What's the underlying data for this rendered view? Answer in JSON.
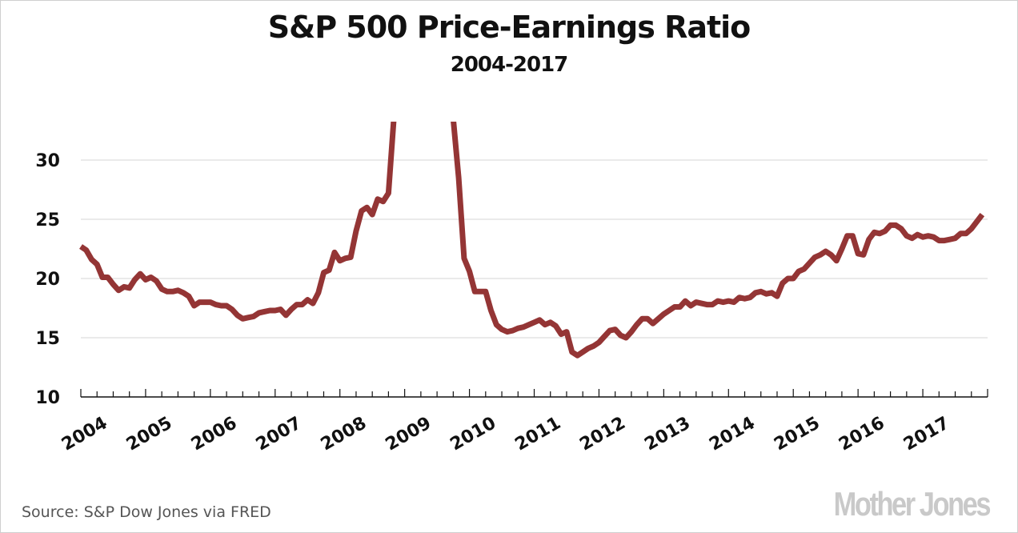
{
  "chart_data": {
    "type": "line",
    "title": "S&P 500 Price-Earnings Ratio",
    "subtitle": "2004-2017",
    "xlabel": "",
    "ylabel": "",
    "ylim": [
      10,
      33.5
    ],
    "yticks": [
      10,
      15,
      20,
      25,
      30
    ],
    "xticks": [
      "2004",
      "2005",
      "2006",
      "2007",
      "2008",
      "2009",
      "2010",
      "2011",
      "2012",
      "2013",
      "2014",
      "2015",
      "2016",
      "2017"
    ],
    "x_range": [
      2004.0,
      2018.0
    ],
    "grid": true,
    "legend": "none",
    "line_color": "#943535",
    "note": "Series exceeds the top of the axis from late 2008 through 2009 (clipped off-chart)",
    "series": [
      {
        "name": "S&P 500 P/E ratio",
        "x": [
          2004.0,
          2004.083,
          2004.167,
          2004.25,
          2004.333,
          2004.417,
          2004.5,
          2004.583,
          2004.667,
          2004.75,
          2004.833,
          2004.917,
          2005.0,
          2005.083,
          2005.167,
          2005.25,
          2005.333,
          2005.417,
          2005.5,
          2005.583,
          2005.667,
          2005.75,
          2005.833,
          2005.917,
          2006.0,
          2006.083,
          2006.167,
          2006.25,
          2006.333,
          2006.417,
          2006.5,
          2006.583,
          2006.667,
          2006.75,
          2006.833,
          2006.917,
          2007.0,
          2007.083,
          2007.167,
          2007.25,
          2007.333,
          2007.417,
          2007.5,
          2007.583,
          2007.667,
          2007.75,
          2007.833,
          2007.917,
          2008.0,
          2008.083,
          2008.167,
          2008.25,
          2008.333,
          2008.417,
          2008.5,
          2008.583,
          2008.667,
          2008.75,
          2008.833,
          2008.917,
          2009.75,
          2009.833,
          2009.917,
          2010.0,
          2010.083,
          2010.167,
          2010.25,
          2010.333,
          2010.417,
          2010.5,
          2010.583,
          2010.667,
          2010.75,
          2010.833,
          2010.917,
          2011.0,
          2011.083,
          2011.167,
          2011.25,
          2011.333,
          2011.417,
          2011.5,
          2011.583,
          2011.667,
          2011.75,
          2011.833,
          2011.917,
          2012.0,
          2012.083,
          2012.167,
          2012.25,
          2012.333,
          2012.417,
          2012.5,
          2012.583,
          2012.667,
          2012.75,
          2012.833,
          2012.917,
          2013.0,
          2013.083,
          2013.167,
          2013.25,
          2013.333,
          2013.417,
          2013.5,
          2013.583,
          2013.667,
          2013.75,
          2013.833,
          2013.917,
          2014.0,
          2014.083,
          2014.167,
          2014.25,
          2014.333,
          2014.417,
          2014.5,
          2014.583,
          2014.667,
          2014.75,
          2014.833,
          2014.917,
          2015.0,
          2015.083,
          2015.167,
          2015.25,
          2015.333,
          2015.417,
          2015.5,
          2015.583,
          2015.667,
          2015.75,
          2015.833,
          2015.917,
          2016.0,
          2016.083,
          2016.167,
          2016.25,
          2016.333,
          2016.417,
          2016.5,
          2016.583,
          2016.667,
          2016.75,
          2016.833,
          2016.917,
          2017.0,
          2017.083,
          2017.167,
          2017.25,
          2017.333,
          2017.417,
          2017.5,
          2017.583,
          2017.667,
          2017.75,
          2017.833,
          2017.917
        ],
        "values": [
          22.7,
          22.4,
          21.6,
          21.2,
          20.1,
          20.1,
          19.5,
          19.0,
          19.3,
          19.2,
          19.9,
          20.4,
          19.9,
          20.1,
          19.8,
          19.1,
          18.9,
          18.9,
          19.0,
          18.8,
          18.5,
          17.7,
          18.0,
          18.0,
          18.0,
          17.8,
          17.7,
          17.7,
          17.4,
          16.9,
          16.6,
          16.7,
          16.8,
          17.1,
          17.2,
          17.3,
          17.3,
          17.4,
          16.9,
          17.4,
          17.8,
          17.8,
          18.2,
          17.9,
          18.8,
          20.5,
          20.7,
          22.2,
          21.5,
          21.7,
          21.8,
          24.0,
          25.7,
          26.0,
          25.4,
          26.7,
          26.5,
          27.2,
          33.5,
          33.5,
          33.5,
          28.5,
          21.7,
          20.6,
          18.9,
          18.9,
          18.9,
          17.3,
          16.1,
          15.7,
          15.5,
          15.6,
          15.8,
          15.9,
          16.1,
          16.3,
          16.5,
          16.1,
          16.3,
          16.0,
          15.3,
          15.5,
          13.8,
          13.5,
          13.8,
          14.1,
          14.3,
          14.6,
          15.1,
          15.6,
          15.7,
          15.2,
          15.0,
          15.5,
          16.1,
          16.6,
          16.6,
          16.2,
          16.6,
          17.0,
          17.3,
          17.6,
          17.6,
          18.1,
          17.7,
          18.0,
          17.9,
          17.8,
          17.8,
          18.1,
          18.0,
          18.1,
          18.0,
          18.4,
          18.3,
          18.4,
          18.8,
          18.9,
          18.7,
          18.8,
          18.5,
          19.6,
          20.0,
          20.0,
          20.6,
          20.8,
          21.3,
          21.8,
          22.0,
          22.3,
          22.0,
          21.5,
          22.5,
          23.6,
          23.6,
          22.1,
          22.0,
          23.3,
          23.9,
          23.8,
          24.0,
          24.5,
          24.5,
          24.2,
          23.6,
          23.4,
          23.7,
          23.5,
          23.6,
          23.5,
          23.2,
          23.2,
          23.3,
          23.4,
          23.8,
          23.8,
          24.2,
          24.8,
          25.4
        ]
      }
    ]
  },
  "footer": {
    "source": "Source: S&P Dow Jones via FRED",
    "logo": "Mother Jones"
  }
}
